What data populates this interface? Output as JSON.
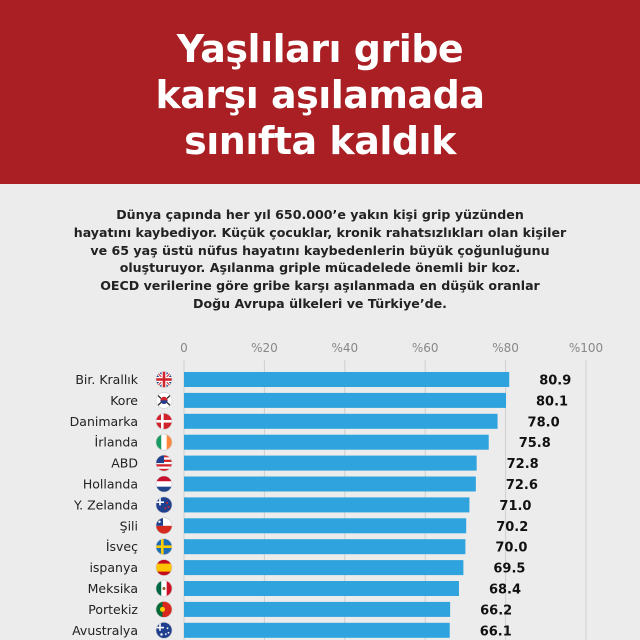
{
  "header": {
    "title_lines": [
      "Yaşlıları gribe",
      "karşı aşılamada",
      "sınıfta kaldık"
    ],
    "background": "#a91f23"
  },
  "intro_lines": [
    "Dünya çapında her yıl 650.000’e yakın kişi grip yüzünden",
    "hayatını kaybediyor.  Küçük çocuklar, kronik rahatsızlıkları olan kişiler",
    "ve 65 yaş üstü nüfus hayatını kaybedenlerin büyük çoğunluğunu",
    "oluşturuyor. Aşılanma griple mücadelede önemli bir koz.",
    "OECD verilerine göre gribe karşı aşılanmada en düşük oranlar",
    "Doğu Avrupa ülkeleri ve Türkiye’de."
  ],
  "chart_data": {
    "type": "bar",
    "orientation": "horizontal",
    "xlim": [
      0,
      100
    ],
    "x_ticks": [
      "0",
      "%20",
      "%40",
      "%60",
      "%80",
      "%100"
    ],
    "tick_values": [
      0,
      20,
      40,
      60,
      80,
      100
    ],
    "bar_color": "#2fa3dd",
    "categories": [
      "Bir. Krallık",
      "Kore",
      "Danimarka",
      "İrlanda",
      "ABD",
      "Hollanda",
      "Y. Zelanda",
      "Şili",
      "İsveç",
      "ispanya",
      "Meksika",
      "Portekiz",
      "Avustralya"
    ],
    "flag_icons": [
      "uk-flag-icon",
      "korea-flag-icon",
      "denmark-flag-icon",
      "ireland-flag-icon",
      "usa-flag-icon",
      "netherlands-flag-icon",
      "new-zealand-flag-icon",
      "chile-flag-icon",
      "sweden-flag-icon",
      "spain-flag-icon",
      "mexico-flag-icon",
      "portugal-flag-icon",
      "australia-flag-icon"
    ],
    "values": [
      80.9,
      80.1,
      78.0,
      75.8,
      72.8,
      72.6,
      71.0,
      70.2,
      70.0,
      69.5,
      68.4,
      66.2,
      66.1
    ],
    "value_labels": [
      "80.9",
      "80.1",
      "78.0",
      "75.8",
      "72.8",
      "72.6",
      "71.0",
      "70.2",
      "70.0",
      "69.5",
      "68.4",
      "66.2",
      "66.1"
    ]
  }
}
